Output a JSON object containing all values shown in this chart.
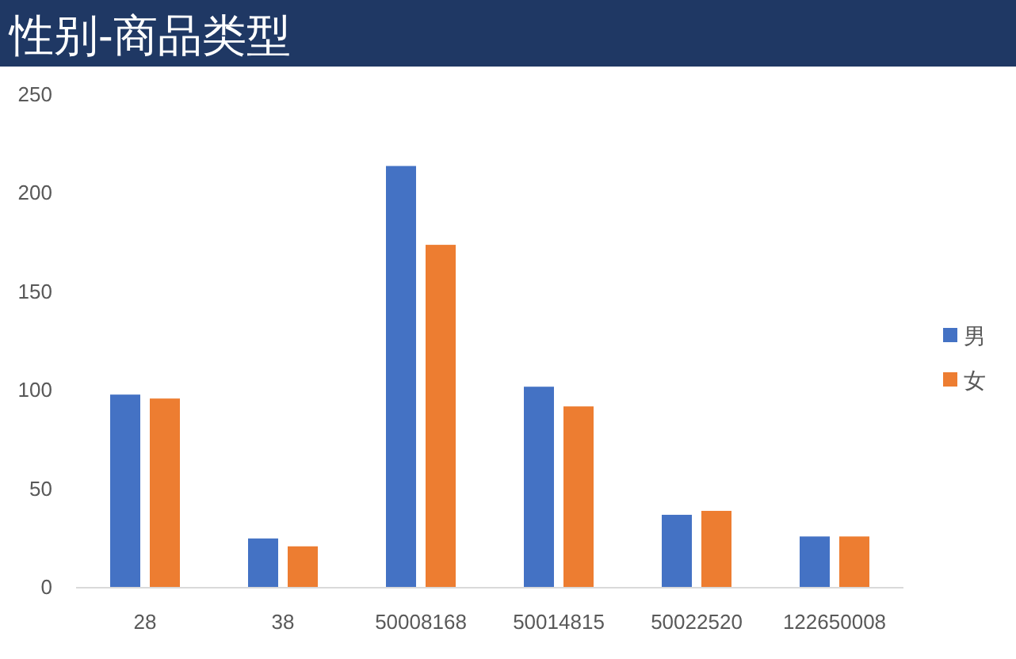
{
  "chart_data": {
    "type": "bar",
    "title": "性别-商品类型",
    "categories": [
      "28",
      "38",
      "50008168",
      "50014815",
      "50022520",
      "122650008"
    ],
    "series": [
      {
        "name": "男",
        "color": "#4472c4",
        "values": [
          98,
          25,
          214,
          102,
          37,
          26
        ]
      },
      {
        "name": "女",
        "color": "#ed7d31",
        "values": [
          96,
          21,
          174,
          92,
          39,
          26
        ]
      }
    ],
    "ylim": [
      0,
      250
    ],
    "yticks": [
      0,
      50,
      100,
      150,
      200,
      250
    ],
    "grid": false,
    "legend": "right"
  }
}
